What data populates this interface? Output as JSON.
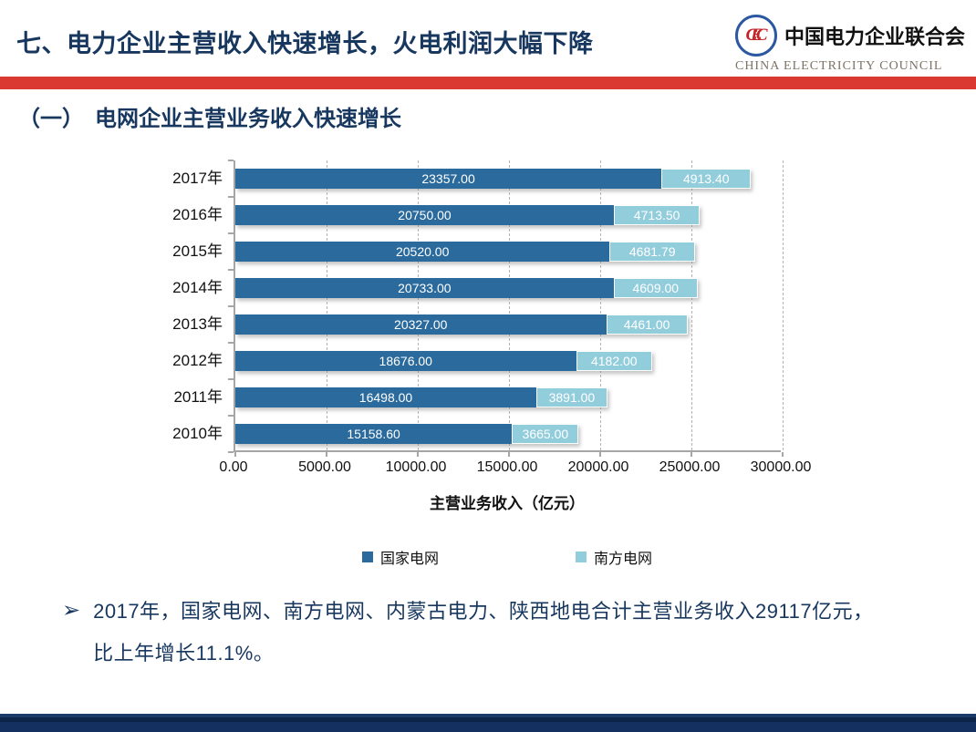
{
  "header": {
    "title": "七、电力企业主营收入快速增长，火电利润大幅下降",
    "logo": {
      "org_cn": "中国电力企业联合会",
      "org_en": "CHINA ELECTRICITY COUNCIL",
      "monogram": "CEC"
    }
  },
  "section": {
    "title": "（一）　电网企业主营业务收入快速增长"
  },
  "chart_data": {
    "type": "bar",
    "orientation": "horizontal",
    "stacked": true,
    "categories": [
      "2017年",
      "2016年",
      "2015年",
      "2014年",
      "2013年",
      "2012年",
      "2011年",
      "2010年"
    ],
    "series": [
      {
        "name": "国家电网",
        "color": "#2B6A9C",
        "values": [
          23357.0,
          20750.0,
          20520.0,
          20733.0,
          20327.0,
          18676.0,
          16498.0,
          15158.6
        ]
      },
      {
        "name": "南方电网",
        "color": "#92CDDC",
        "values": [
          4913.4,
          4713.5,
          4681.79,
          4609.0,
          4461.0,
          4182.0,
          3891.0,
          3665.0
        ]
      }
    ],
    "xlabel": "主营业务收入（亿元）",
    "x_ticks": [
      "0.00",
      "5000.00",
      "10000.00",
      "15000.00",
      "20000.00",
      "25000.00",
      "30000.00"
    ],
    "xlim": [
      0,
      30000
    ],
    "grid": "vertical-dashed",
    "legend_position": "bottom",
    "value_label_color": "#FFFFFF"
  },
  "bullet": {
    "marker": "➢",
    "lines": [
      "2017年，国家电网、南方电网、内蒙古电力、陕西地电合计主营业务收入29117亿元，",
      "比上年增长11.1%。"
    ]
  },
  "colors": {
    "title_navy": "#17375E",
    "divider_red": "#D93931",
    "footer_navy": "#133060",
    "axis_gray": "#A6A6A6",
    "grid_gray": "#B5B5B5"
  }
}
